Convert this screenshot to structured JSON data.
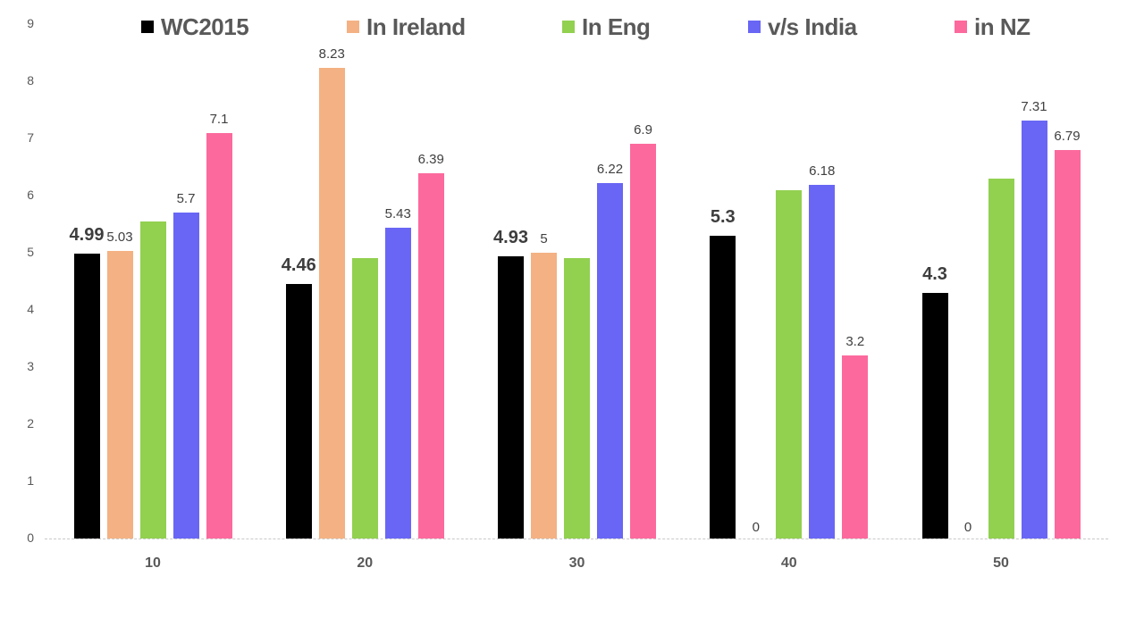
{
  "chart_data": {
    "type": "bar",
    "title": "",
    "xlabel": "",
    "ylabel": "",
    "categories": [
      "10",
      "20",
      "30",
      "40",
      "50"
    ],
    "series": [
      {
        "name": "WC2015",
        "color": "#000000",
        "values": [
          4.99,
          4.46,
          4.93,
          5.3,
          4.3
        ],
        "labels": [
          "4.99",
          "4.46",
          "4.93",
          "5.3",
          "4.3"
        ],
        "label_style": "bold"
      },
      {
        "name": "In Ireland",
        "color": "#F4B183",
        "values": [
          5.03,
          8.23,
          5,
          0,
          0
        ],
        "labels": [
          "5.03",
          "8.23",
          "5",
          "0",
          "0"
        ],
        "label_style": "normal"
      },
      {
        "name": "In Eng",
        "color": "#92D050",
        "values": [
          5.55,
          4.9,
          4.9,
          6.1,
          6.3
        ],
        "labels": [
          null,
          null,
          null,
          null,
          null
        ],
        "label_style": "normal"
      },
      {
        "name": "v/s India",
        "color": "#6966F5",
        "values": [
          5.7,
          5.43,
          6.22,
          6.18,
          7.31
        ],
        "labels": [
          "5.7",
          "5.43",
          "6.22",
          "6.18",
          "7.31"
        ],
        "label_style": "normal"
      },
      {
        "name": "in NZ",
        "color": "#FC699D",
        "values": [
          7.1,
          6.39,
          6.9,
          3.2,
          6.79
        ],
        "labels": [
          "7.1",
          "6.39",
          "6.9",
          "3.2",
          "6.79"
        ],
        "label_style": "normal"
      }
    ],
    "yticks": [
      0,
      1,
      2,
      3,
      4,
      5,
      6,
      7,
      8,
      9
    ],
    "ylim": [
      0,
      9
    ],
    "grid": false,
    "legend_position": "top",
    "axis_color": "#c9c9c9",
    "tick_label_color": "#595959",
    "data_label_color": "#404040"
  }
}
